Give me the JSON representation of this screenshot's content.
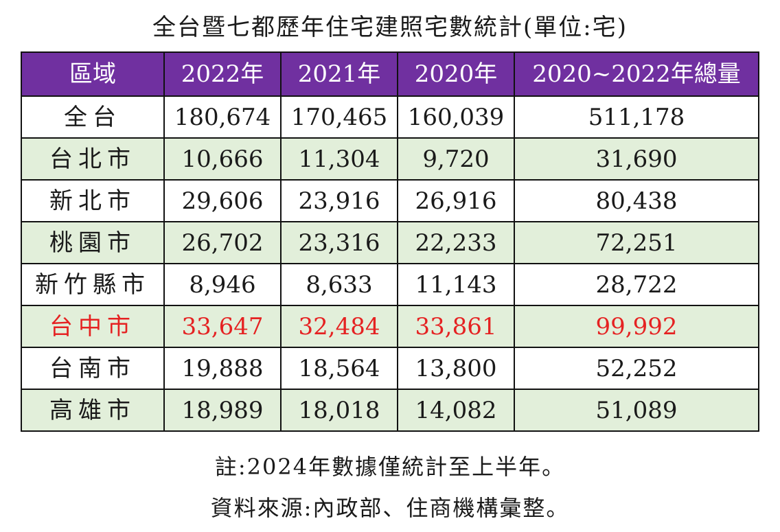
{
  "title": "全台暨七都歷年住宅建照宅數統計(單位:宅)",
  "chart_data": {
    "type": "table",
    "title": "全台暨七都歷年住宅建照宅數統計(單位:宅)",
    "columns": [
      "區域",
      "2022年",
      "2021年",
      "2020年",
      "2020~2022年總量"
    ],
    "rows": [
      {
        "region": "全台",
        "y2022": "180,674",
        "y2021": "170,465",
        "y2020": "160,039",
        "total": "511,178",
        "style": "white",
        "highlight": false
      },
      {
        "region": "台北市",
        "y2022": "10,666",
        "y2021": "11,304",
        "y2020": "9,720",
        "total": "31,690",
        "style": "green",
        "highlight": false
      },
      {
        "region": "新北市",
        "y2022": "29,606",
        "y2021": "23,916",
        "y2020": "26,916",
        "total": "80,438",
        "style": "white",
        "highlight": false
      },
      {
        "region": "桃園市",
        "y2022": "26,702",
        "y2021": "23,316",
        "y2020": "22,233",
        "total": "72,251",
        "style": "green",
        "highlight": false
      },
      {
        "region": "新竹縣市",
        "y2022": "8,946",
        "y2021": "8,633",
        "y2020": "11,143",
        "total": "28,722",
        "style": "white",
        "highlight": false
      },
      {
        "region": "台中市",
        "y2022": "33,647",
        "y2021": "32,484",
        "y2020": "33,861",
        "total": "99,992",
        "style": "green",
        "highlight": true
      },
      {
        "region": "台南市",
        "y2022": "19,888",
        "y2021": "18,564",
        "y2020": "13,800",
        "total": "52,252",
        "style": "white",
        "highlight": false
      },
      {
        "region": "高雄市",
        "y2022": "18,989",
        "y2021": "18,018",
        "y2020": "14,082",
        "total": "51,089",
        "style": "green",
        "highlight": false
      }
    ],
    "header_color": "#7030a0",
    "alt_row_color": "#e2efda",
    "highlight_color": "#e52222"
  },
  "notes": [
    "註:2024年數據僅統計至上半年。",
    "資料來源:內政部、住商機構彙整。"
  ]
}
